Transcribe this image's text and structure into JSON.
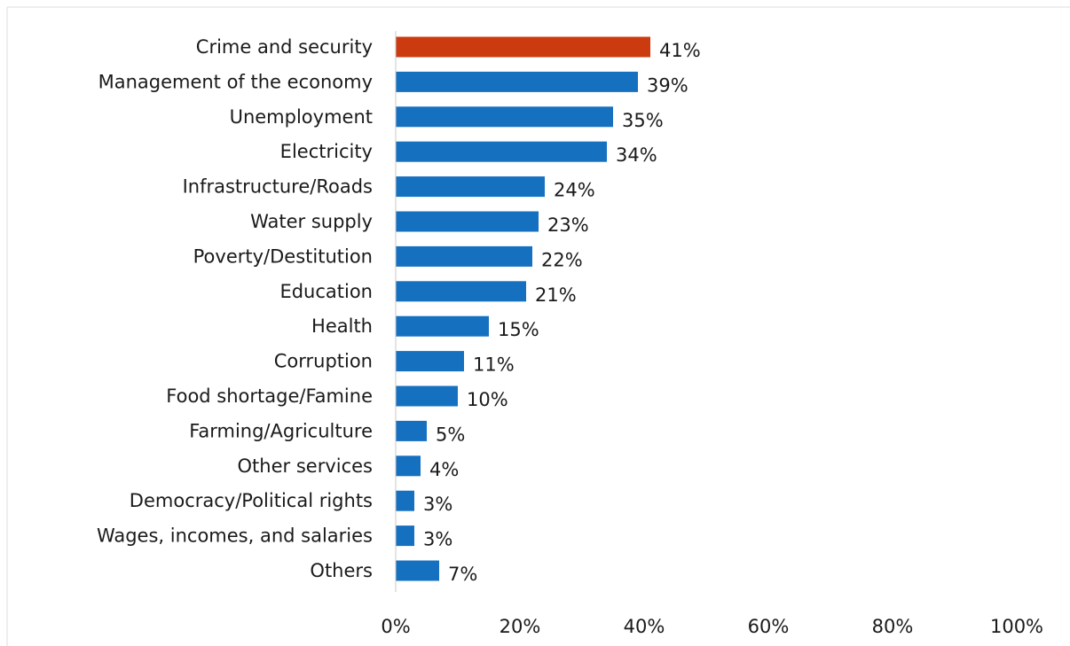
{
  "chart_data": {
    "type": "bar",
    "orientation": "horizontal",
    "categories": [
      "Crime and security",
      "Management of the economy",
      "Unemployment",
      "Electricity",
      "Infrastructure/Roads",
      "Water supply",
      "Poverty/Destitution",
      "Education",
      "Health",
      "Corruption",
      "Food shortage/Famine",
      "Farming/Agriculture",
      "Other services",
      "Democracy/Political rights",
      "Wages, incomes, and salaries",
      "Others"
    ],
    "values": [
      41,
      39,
      35,
      34,
      24,
      23,
      22,
      21,
      15,
      11,
      10,
      5,
      4,
      3,
      3,
      7
    ],
    "value_labels": [
      "41%",
      "39%",
      "35%",
      "34%",
      "24%",
      "23%",
      "22%",
      "21%",
      "15%",
      "11%",
      "10%",
      "5%",
      "4%",
      "3%",
      "3%",
      "7%"
    ],
    "highlight_index": 0,
    "xlim": [
      0,
      100
    ],
    "x_ticks": [
      0,
      20,
      40,
      60,
      80,
      100
    ],
    "x_tick_labels": [
      "0%",
      "20%",
      "40%",
      "60%",
      "80%",
      "100%"
    ],
    "grid": false,
    "title": "",
    "xlabel": "",
    "ylabel": "",
    "colors": {
      "bar": "#1570c0",
      "highlight": "#cc3a10",
      "axis": "#c8c8c8",
      "border": "#dcdcdc"
    }
  }
}
